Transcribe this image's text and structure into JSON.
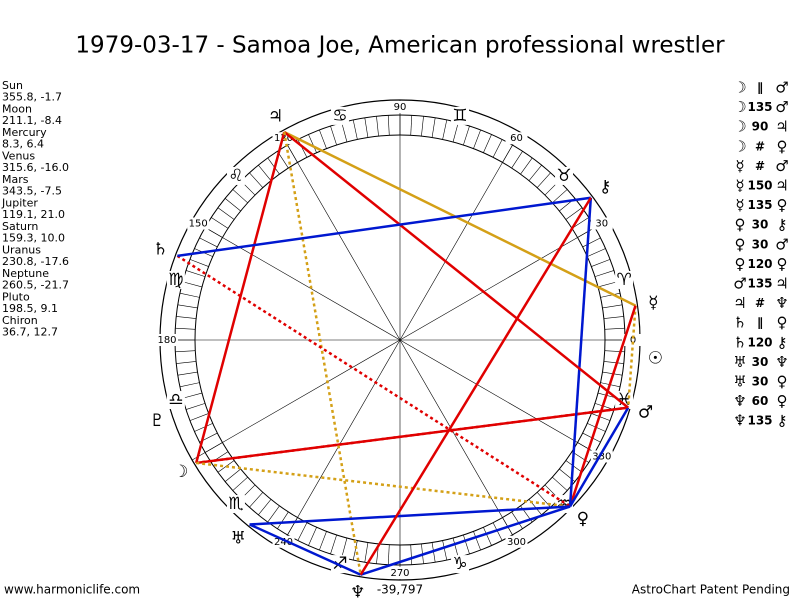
{
  "title": "1979-03-17 - Samoa Joe, American professional wrestler",
  "planets": [
    {
      "name": "Sun",
      "coords": "355.8, -1.7",
      "glyph": "☉"
    },
    {
      "name": "Moon",
      "coords": "211.1, -8.4",
      "glyph": "☽"
    },
    {
      "name": "Mercury",
      "coords": "8.3, 6.4",
      "glyph": "☿"
    },
    {
      "name": "Venus",
      "coords": "315.6, -16.0",
      "glyph": "♀"
    },
    {
      "name": "Mars",
      "coords": "343.5, -7.5",
      "glyph": "♂"
    },
    {
      "name": "Jupiter",
      "coords": "119.1, 21.0",
      "glyph": "♃"
    },
    {
      "name": "Saturn",
      "coords": "159.3, 10.0",
      "glyph": "♄"
    },
    {
      "name": "Uranus",
      "coords": "230.8, -17.6",
      "glyph": "♅"
    },
    {
      "name": "Neptune",
      "coords": "260.5, -21.7",
      "glyph": "♆"
    },
    {
      "name": "Pluto",
      "coords": "198.5, 9.1",
      "glyph": "♇"
    },
    {
      "name": "Chiron",
      "coords": "36.7, 12.7",
      "glyph": "⚷"
    }
  ],
  "aspects": [
    {
      "a": "☽",
      "aspect": "∥",
      "b": "♂"
    },
    {
      "a": "☽",
      "aspect": "135",
      "b": "♂"
    },
    {
      "a": "☽",
      "aspect": "90",
      "b": "♃"
    },
    {
      "a": "☽",
      "aspect": "#",
      "b": "♀"
    },
    {
      "a": "☿",
      "aspect": "#",
      "b": "♂"
    },
    {
      "a": "☿",
      "aspect": "150",
      "b": "♃"
    },
    {
      "a": "☿",
      "aspect": "135",
      "b": "♀"
    },
    {
      "a": "♀",
      "aspect": "30",
      "b": "⚷"
    },
    {
      "a": "♀",
      "aspect": "30",
      "b": "♂"
    },
    {
      "a": "♀",
      "aspect": "120",
      "b": "♀"
    },
    {
      "a": "♂",
      "aspect": "135",
      "b": "♃"
    },
    {
      "a": "♃",
      "aspect": "#",
      "b": "♆"
    },
    {
      "a": "♄",
      "aspect": "∥",
      "b": "♀"
    },
    {
      "a": "♄",
      "aspect": "120",
      "b": "⚷"
    },
    {
      "a": "♅",
      "aspect": "30",
      "b": "♆"
    },
    {
      "a": "♅",
      "aspect": "30",
      "b": "♀"
    },
    {
      "a": "♆",
      "aspect": "60",
      "b": "♀"
    },
    {
      "a": "♆",
      "aspect": "135",
      "b": "⚷"
    }
  ],
  "zodiac": [
    "♈",
    "♉",
    "♊",
    "♋",
    "♌",
    "♍",
    "♎",
    "♏",
    "♐",
    "♑",
    "♒",
    "♓"
  ],
  "degree_labels": [
    0,
    30,
    60,
    90,
    120,
    150,
    180,
    240,
    270,
    300,
    330
  ],
  "center_note": "-39,797",
  "footer_left": "www.harmoniclife.com",
  "footer_right": "AstroChart Patent Pending"
}
